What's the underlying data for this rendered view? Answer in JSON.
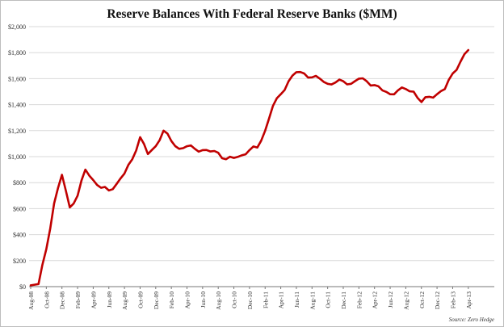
{
  "chart_data": {
    "type": "line",
    "title": "Reserve Balances With Federal Reserve Banks ($MM)",
    "xlabel": "",
    "ylabel": "",
    "ylim": [
      0,
      2000
    ],
    "y_ticks": [
      "$0",
      "$200",
      "$400",
      "$600",
      "$800",
      "$1,000",
      "$1,200",
      "$1,400",
      "$1,600",
      "$1,800",
      "$2,000"
    ],
    "x_ticks": [
      "Aug-08",
      "Oct-08",
      "Dec-08",
      "Feb-09",
      "Apr-09",
      "Jun-09",
      "Aug-09",
      "Oct-09",
      "Dec-09",
      "Feb-10",
      "Apr-10",
      "Jun-10",
      "Aug-10",
      "Oct-10",
      "Dec-10",
      "Feb-11",
      "Apr-11",
      "Jun-11",
      "Aug-11",
      "Oct-11",
      "Dec-11",
      "Feb-12",
      "Apr-12",
      "Jun-12",
      "Aug-12",
      "Oct-12",
      "Dec-12",
      "Feb-13",
      "Apr-13"
    ],
    "x_start": "Aug-08",
    "x_end": "Apr-13",
    "grid": true,
    "line_color": "#c00000",
    "source": "Source: Zero Hedge",
    "series": [
      {
        "x": [
          "Aug-08",
          "Sep-08",
          "Oct-08",
          "Nov-08",
          "Dec-08",
          "Jan-09",
          "Feb-09",
          "Mar-09",
          "Apr-09",
          "May-09",
          "Jun-09",
          "Jul-09",
          "Aug-09",
          "Sep-09",
          "Oct-09",
          "Nov-09",
          "Dec-09",
          "Jan-10",
          "Feb-10",
          "Mar-10",
          "Apr-10",
          "May-10",
          "Jun-10",
          "Jul-10",
          "Aug-10",
          "Sep-10",
          "Oct-10",
          "Nov-10",
          "Dec-10",
          "Jan-11",
          "Feb-11",
          "Mar-11",
          "Apr-11",
          "May-11",
          "Jun-11",
          "Jul-11",
          "Aug-11",
          "Sep-11",
          "Oct-11",
          "Nov-11",
          "Dec-11",
          "Jan-12",
          "Feb-12",
          "Mar-12",
          "Apr-12",
          "May-12",
          "Jun-12",
          "Jul-12",
          "Aug-12",
          "Sep-12",
          "Oct-12",
          "Nov-12",
          "Dec-12",
          "Jan-13",
          "Feb-13",
          "Mar-13",
          "Apr-13"
        ],
        "values": [
          10,
          20,
          290,
          640,
          860,
          610,
          700,
          900,
          820,
          760,
          740,
          790,
          870,
          980,
          1150,
          1020,
          1080,
          1200,
          1120,
          1060,
          1080,
          1060,
          1050,
          1040,
          1030,
          980,
          990,
          1010,
          1050,
          1070,
          1200,
          1390,
          1480,
          1580,
          1650,
          1640,
          1610,
          1600,
          1560,
          1570,
          1580,
          1560,
          1600,
          1580,
          1550,
          1510,
          1480,
          1510,
          1520,
          1500,
          1420,
          1460,
          1480,
          1520,
          1640,
          1730,
          1820
        ]
      }
    ]
  }
}
